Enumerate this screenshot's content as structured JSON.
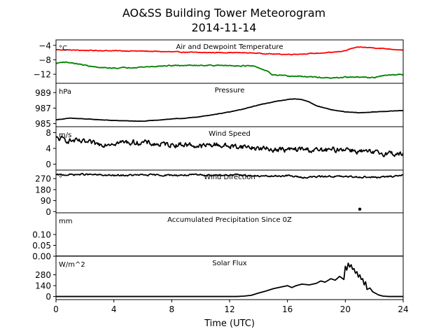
{
  "figure": {
    "title": "AO&SS Building Tower Meteorogram",
    "subtitle": "2014-11-14",
    "xlabel": "Time (UTC)",
    "xticks": [
      0,
      4,
      8,
      12,
      16,
      20,
      24
    ],
    "xlim": [
      0,
      24
    ]
  },
  "chart_data": [
    {
      "type": "line",
      "title": "Air and Dewpoint Temperature",
      "unit_label": "°C",
      "ylim": [
        -14.5,
        -2.5
      ],
      "yticks": [
        -4,
        -8,
        -12
      ],
      "ytick_labels": [
        "−4",
        "−8",
        "−12"
      ],
      "grid": false,
      "series": [
        {
          "color": "#ff0000",
          "noise": 0.18,
          "x": [
            0,
            2,
            4,
            6,
            8,
            10,
            12,
            13.5,
            15,
            16,
            17,
            18,
            19,
            20,
            20.5,
            21,
            22,
            23,
            24
          ],
          "y": [
            -5.2,
            -5.4,
            -5.5,
            -5.6,
            -5.8,
            -6.0,
            -6.0,
            -6.1,
            -6.4,
            -6.5,
            -6.4,
            -6.2,
            -6.0,
            -5.5,
            -4.8,
            -4.5,
            -4.7,
            -5.0,
            -5.3
          ]
        },
        {
          "color": "#008000",
          "noise": 0.25,
          "x": [
            0,
            0.5,
            1,
            2,
            3,
            4,
            6,
            8,
            10,
            12,
            13.5,
            14,
            14.5,
            15,
            16,
            17,
            18,
            19,
            20,
            21,
            22,
            23,
            24
          ],
          "y": [
            -9.0,
            -8.6,
            -8.8,
            -9.5,
            -10.2,
            -10.3,
            -10.0,
            -9.6,
            -9.5,
            -9.6,
            -9.7,
            -10.2,
            -11.0,
            -12.2,
            -12.5,
            -12.6,
            -12.8,
            -13.1,
            -12.8,
            -12.8,
            -12.9,
            -12.2,
            -12.0
          ]
        }
      ]
    },
    {
      "type": "line",
      "title": "Pressure",
      "unit_label": "hPa",
      "ylim": [
        984.6,
        990.2
      ],
      "yticks": [
        989,
        987,
        985
      ],
      "ytick_labels": [
        "989",
        "987",
        "985"
      ],
      "grid": false,
      "series": [
        {
          "color": "#000000",
          "noise": 0.04,
          "x": [
            0,
            1,
            2,
            4,
            6,
            8,
            9,
            10,
            11,
            12,
            13,
            14,
            15,
            16,
            16.5,
            17,
            17.5,
            18,
            19,
            20,
            21,
            22,
            23,
            24
          ],
          "y": [
            985.5,
            985.7,
            985.6,
            985.4,
            985.3,
            985.6,
            985.7,
            985.9,
            986.2,
            986.5,
            986.9,
            987.4,
            987.8,
            988.1,
            988.2,
            988.1,
            987.8,
            987.3,
            986.8,
            986.5,
            986.4,
            986.5,
            986.6,
            986.7
          ]
        }
      ]
    },
    {
      "type": "line",
      "title": "Wind Speed",
      "unit_label": "m/s",
      "ylim": [
        -1.5,
        9.5
      ],
      "yticks": [
        8,
        4,
        0
      ],
      "ytick_labels": [
        "8",
        "4",
        "0"
      ],
      "grid": false,
      "series": [
        {
          "color": "#000000",
          "noise": 1.2,
          "x": [
            0,
            1,
            2,
            3,
            4,
            5,
            6,
            7,
            8,
            9,
            10,
            11,
            12,
            13,
            14,
            15,
            16,
            17,
            18,
            19,
            20,
            21,
            22,
            23,
            24
          ],
          "y": [
            6.5,
            6.0,
            5.5,
            5.0,
            5.5,
            5.5,
            5.5,
            5.0,
            5.0,
            5.0,
            4.5,
            5.0,
            4.5,
            4.5,
            4.0,
            3.8,
            3.6,
            3.8,
            3.5,
            3.5,
            4.0,
            3.2,
            2.8,
            2.8,
            2.5
          ]
        }
      ]
    },
    {
      "type": "line",
      "title": "Wind Direction",
      "unit_label": "°",
      "ylim": [
        -10,
        340
      ],
      "yticks": [
        270,
        180,
        90,
        0
      ],
      "ytick_labels": [
        "270",
        "180",
        "90",
        "0"
      ],
      "grid": false,
      "series": [
        {
          "color": "#000000",
          "noise": 12,
          "x": [
            0,
            2,
            4,
            6,
            8,
            10,
            12,
            13,
            14,
            15,
            16,
            17,
            18,
            19,
            20,
            21,
            22,
            23,
            24
          ],
          "y": [
            300,
            305,
            295,
            300,
            298,
            300,
            300,
            298,
            290,
            290,
            295,
            280,
            285,
            290,
            285,
            285,
            280,
            285,
            300
          ]
        }
      ],
      "points": [
        {
          "x": 21.0,
          "y": 20
        }
      ]
    },
    {
      "type": "line",
      "title": "Accumulated Precipitation Since 0Z",
      "unit_label": "mm",
      "ylim": [
        0,
        0.2
      ],
      "yticks": [
        0.1,
        0.05,
        0.0
      ],
      "ytick_labels": [
        "0.10",
        "0.05",
        "0.00"
      ],
      "grid": false,
      "series": [
        {
          "color": "#000000",
          "noise": 0,
          "x": [
            0,
            24
          ],
          "y": [
            0,
            0
          ]
        }
      ]
    },
    {
      "type": "line",
      "title": "Solar Flux",
      "unit_label": "W/m^2",
      "ylim": [
        -40,
        520
      ],
      "yticks": [
        280,
        140,
        0
      ],
      "ytick_labels": [
        "280",
        "140",
        "0"
      ],
      "grid": false,
      "series": [
        {
          "color": "#000000",
          "noise": 0,
          "x": [
            0,
            12.5,
            13,
            13.5,
            14,
            14.5,
            15,
            15.5,
            16,
            16.3,
            16.6,
            17,
            17.5,
            18,
            18.3,
            18.6,
            19,
            19.3,
            19.6,
            19.9,
            20.0,
            20.1,
            20.2,
            20.3,
            20.4,
            20.5,
            20.6,
            20.7,
            20.8,
            20.9,
            21.0,
            21.1,
            21.2,
            21.3,
            21.4,
            21.5,
            21.7,
            21.9,
            22.1,
            22.3,
            22.6,
            23,
            24
          ],
          "y": [
            0,
            0,
            5,
            15,
            45,
            70,
            100,
            120,
            140,
            115,
            140,
            160,
            150,
            170,
            200,
            185,
            230,
            210,
            260,
            220,
            390,
            340,
            430,
            380,
            410,
            350,
            360,
            300,
            320,
            250,
            280,
            220,
            230,
            150,
            190,
            90,
            110,
            60,
            40,
            20,
            5,
            0,
            0
          ]
        }
      ]
    }
  ]
}
